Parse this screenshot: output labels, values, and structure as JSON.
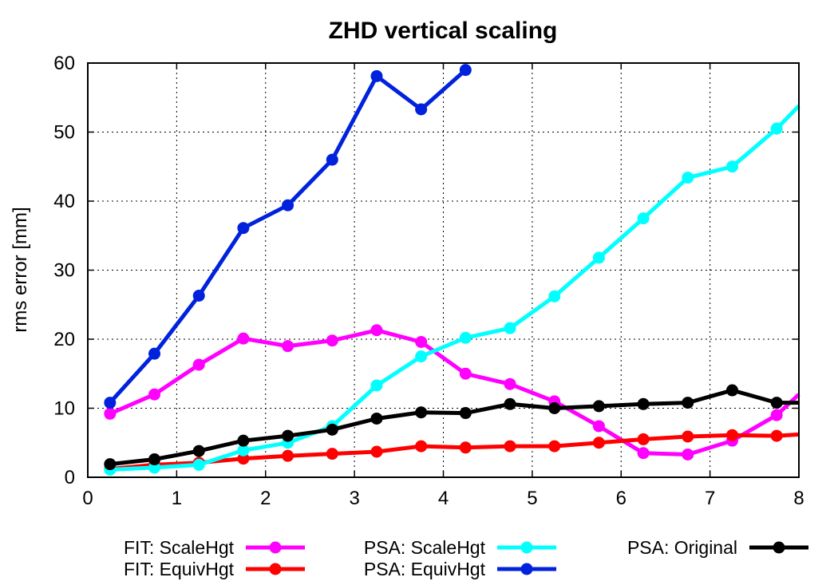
{
  "chart_data": {
    "type": "line",
    "title": "ZHD vertical scaling",
    "xlabel": "",
    "ylabel": "rms error [mm]",
    "xlim": [
      0,
      8
    ],
    "ylim": [
      0,
      60
    ],
    "x_ticks": [
      0,
      1,
      2,
      3,
      4,
      5,
      6,
      7,
      8
    ],
    "y_ticks": [
      0,
      10,
      20,
      30,
      40,
      50,
      60
    ],
    "grid": true,
    "legend_position": "bottom",
    "series": [
      {
        "name": "FIT: ScaleHgt",
        "color": "#ff00ff",
        "x": [
          0.25,
          0.75,
          1.25,
          1.75,
          2.25,
          2.75,
          3.25,
          3.75,
          4.25,
          4.75,
          5.25,
          5.75,
          6.25,
          6.75,
          7.25,
          7.75,
          8.0
        ],
        "y": [
          9.2,
          12.0,
          16.3,
          20.1,
          19.0,
          19.8,
          21.3,
          19.6,
          15.0,
          13.5,
          11.0,
          7.4,
          3.5,
          3.3,
          5.3,
          9.0,
          12.0
        ]
      },
      {
        "name": "FIT: EquivHgt",
        "color": "#ff0000",
        "x": [
          0.25,
          0.75,
          1.25,
          1.75,
          2.25,
          2.75,
          3.25,
          3.75,
          4.25,
          4.75,
          5.25,
          5.75,
          6.25,
          6.75,
          7.25,
          7.75,
          8.0
        ],
        "y": [
          1.2,
          1.8,
          2.1,
          2.7,
          3.1,
          3.4,
          3.7,
          4.5,
          4.3,
          4.5,
          4.5,
          5.0,
          5.5,
          5.9,
          6.1,
          6.0,
          6.2
        ]
      },
      {
        "name": "PSA: ScaleHgt",
        "color": "#00ffff",
        "x": [
          0.25,
          0.75,
          1.25,
          1.75,
          2.25,
          2.75,
          3.25,
          3.75,
          4.25,
          4.75,
          5.25,
          5.75,
          6.25,
          6.75,
          7.25,
          7.75,
          8.0
        ],
        "y": [
          1.1,
          1.4,
          1.8,
          3.9,
          5.0,
          7.4,
          13.3,
          17.5,
          20.2,
          21.6,
          26.2,
          31.8,
          37.5,
          43.4,
          45.0,
          50.5,
          53.8
        ]
      },
      {
        "name": "PSA: EquivHgt",
        "color": "#0022dd",
        "x": [
          0.25,
          0.75,
          1.25,
          1.75,
          2.25,
          2.75,
          3.25,
          3.75,
          4.25
        ],
        "y": [
          10.8,
          17.9,
          26.3,
          36.1,
          39.4,
          46.0,
          58.1,
          53.3,
          59.0
        ]
      },
      {
        "name": "PSA: Original",
        "color": "#000000",
        "x": [
          0.25,
          0.75,
          1.25,
          1.75,
          2.25,
          2.75,
          3.25,
          3.75,
          4.25,
          4.75,
          5.25,
          5.75,
          6.25,
          6.75,
          7.25,
          7.75,
          8.0
        ],
        "y": [
          1.9,
          2.6,
          3.8,
          5.3,
          6.0,
          6.9,
          8.5,
          9.4,
          9.3,
          10.6,
          10.0,
          10.3,
          10.6,
          10.8,
          12.6,
          10.8,
          10.8
        ]
      }
    ]
  }
}
